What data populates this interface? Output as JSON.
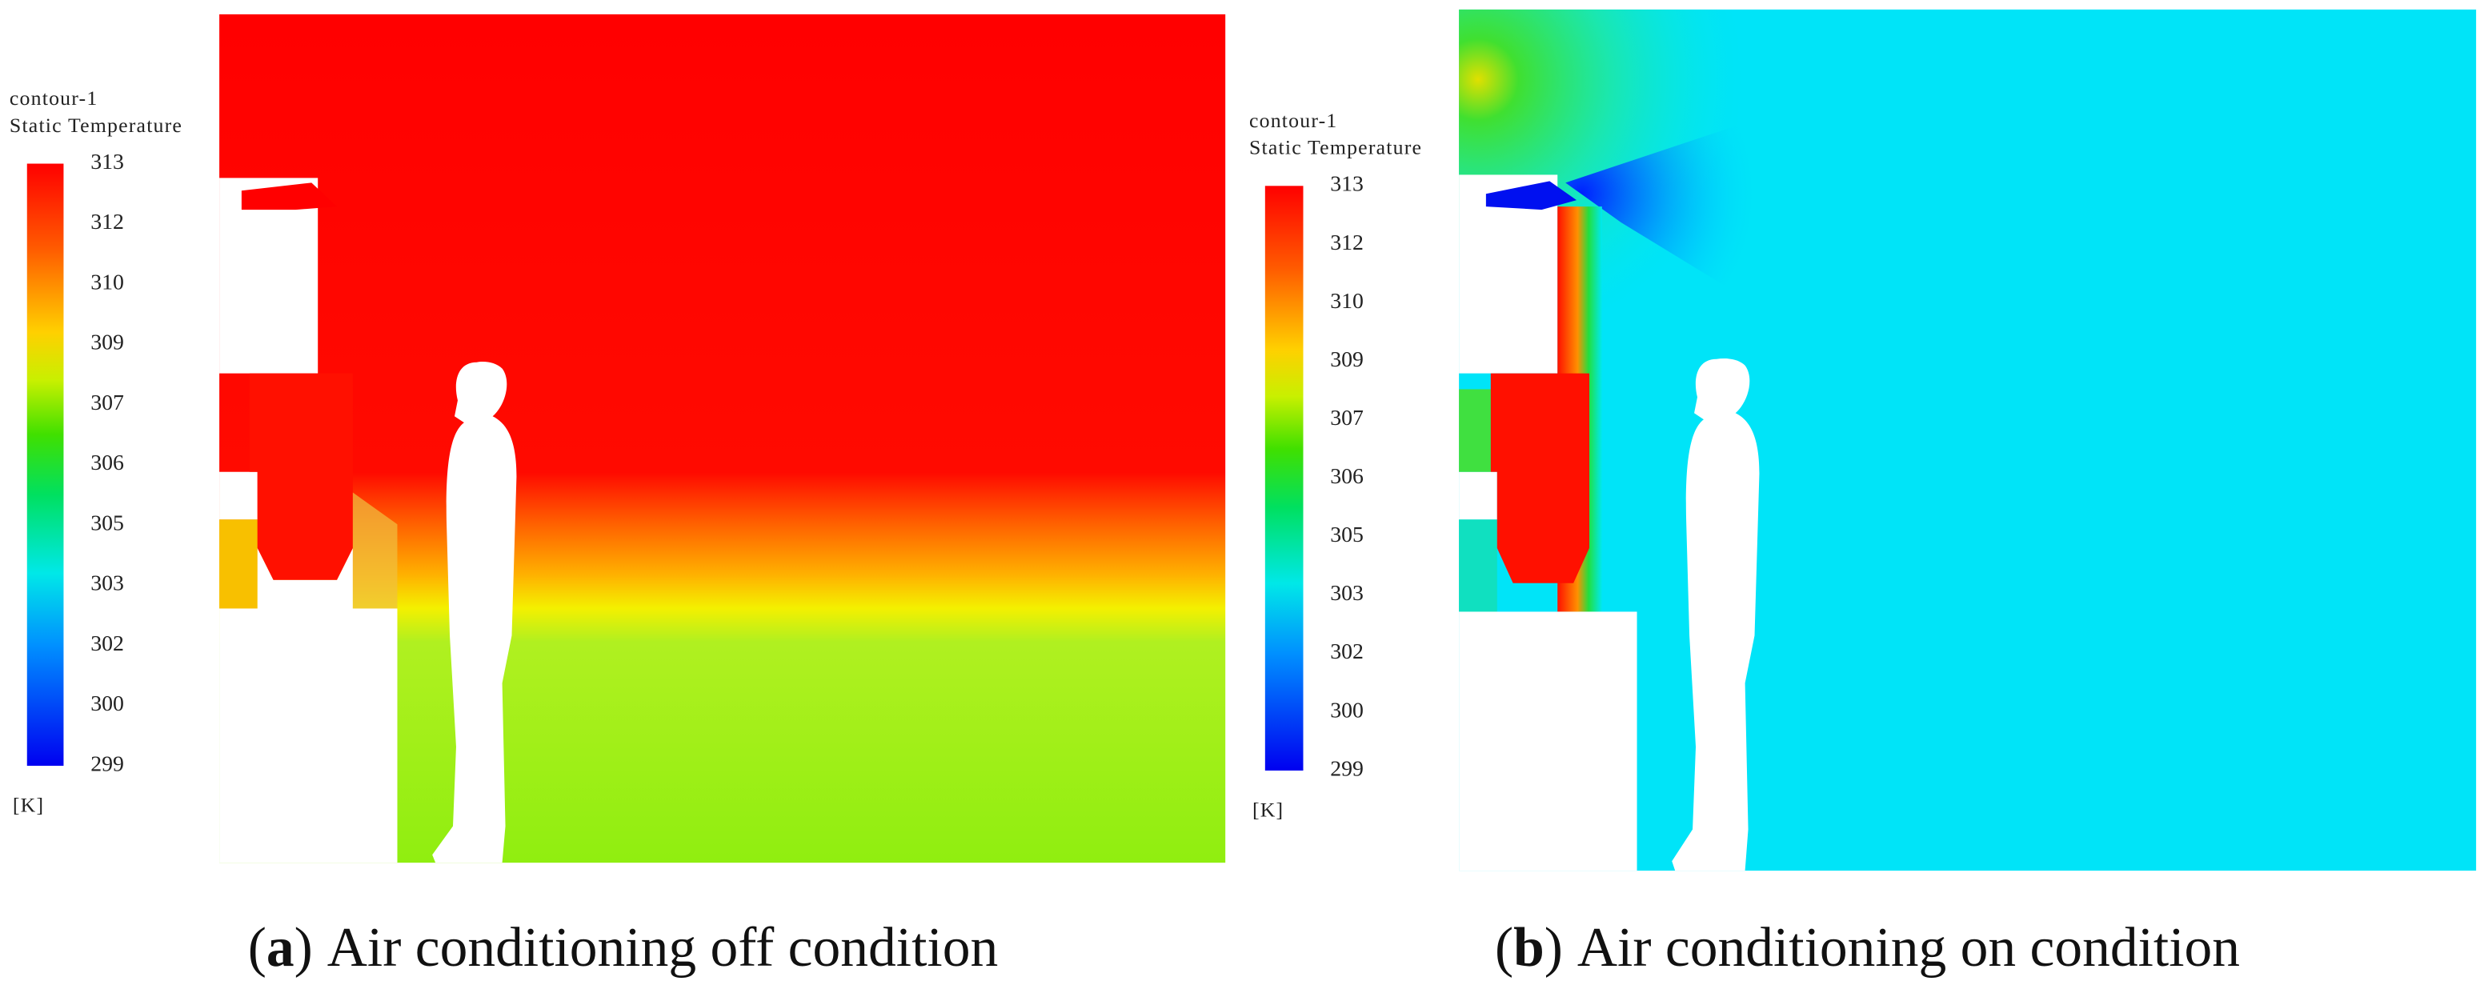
{
  "panels": [
    {
      "legend": {
        "title": [
          "contour-1",
          "Static Temperature"
        ],
        "ticks": [
          313,
          312,
          310,
          309,
          307,
          306,
          305,
          303,
          302,
          300,
          299
        ],
        "unit": "[K]"
      },
      "caption": {
        "parts": [
          "(",
          "a",
          ")",
          "Air conditioning off condition"
        ]
      }
    },
    {
      "legend": {
        "title": [
          "contour-1",
          "Static Temperature"
        ],
        "ticks": [
          313,
          312,
          310,
          309,
          307,
          306,
          305,
          303,
          302,
          300,
          299
        ],
        "unit": "[K]"
      },
      "caption": {
        "parts": [
          "(",
          "b",
          ")",
          "Air conditioning on condition"
        ]
      }
    }
  ]
}
